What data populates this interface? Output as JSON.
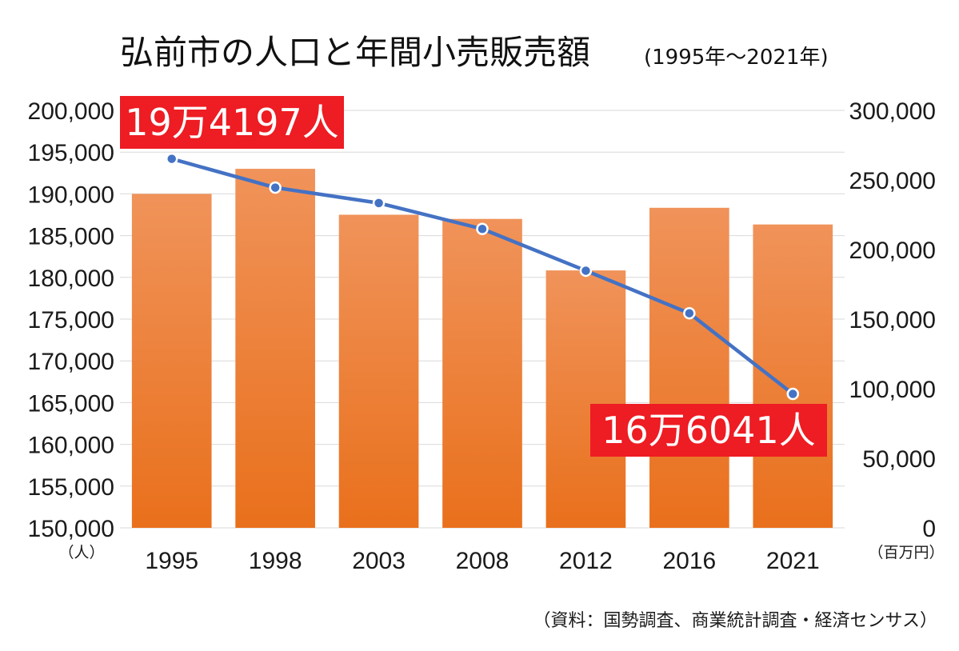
{
  "chart_data": {
    "type": "bar",
    "title": "弘前市の人口と年間小売販売額",
    "subtitle": "(1995年〜2021年)",
    "categories": [
      "1995",
      "1998",
      "2003",
      "2008",
      "2012",
      "2016",
      "2021"
    ],
    "series": [
      {
        "kind": "bar",
        "axis": "right",
        "values": [
          240000,
          258000,
          225000,
          222000,
          185000,
          230000,
          218000
        ],
        "color": "#ec7424"
      },
      {
        "kind": "line",
        "axis": "left",
        "values": [
          194197,
          190750,
          188900,
          185800,
          180800,
          175700,
          166041
        ],
        "color": "#4472c4"
      }
    ],
    "left_axis": {
      "unit_label": "（人）",
      "min": 150000,
      "max": 200000,
      "ticks": [
        "150,000",
        "155,000",
        "160,000",
        "165,000",
        "170,000",
        "175,000",
        "180,000",
        "185,000",
        "190,000",
        "195,000",
        "200,000"
      ]
    },
    "right_axis": {
      "unit_label": "（百万円）",
      "min": 0,
      "max": 300000,
      "ticks": [
        "0",
        "50,000",
        "100,000",
        "150,000",
        "200,000",
        "250,000",
        "300,000"
      ]
    },
    "annotations": [
      {
        "text": "19万4197人",
        "category": "1995",
        "color": "#ee1c23"
      },
      {
        "text": "16万6041人",
        "category": "2021",
        "color": "#ee1c23"
      }
    ],
    "source": "（資料：国勢調査、商業統計調査・経済センサス）",
    "grid": true
  }
}
